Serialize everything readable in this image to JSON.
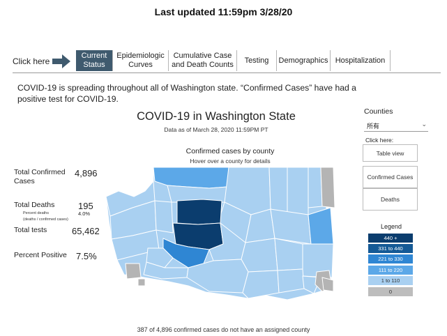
{
  "header": {
    "last_updated": "Last updated 11:59pm 3/28/20"
  },
  "nav": {
    "click_here": "Click here",
    "tabs": [
      {
        "label": "Current Status",
        "active": true
      },
      {
        "label": "Epidemiologic Curves",
        "active": false
      },
      {
        "label": "Cumulative Case and Death Counts",
        "active": false
      },
      {
        "label": "Testing",
        "active": false
      },
      {
        "label": "Demographics",
        "active": false
      },
      {
        "label": "Hospitalization",
        "active": false
      }
    ]
  },
  "intro": "COVID-19 is spreading throughout all of Washington state. “Confirmed Cases” have had a positive test for COVID-19.",
  "dashboard": {
    "title": "COVID-19 in Washington State",
    "data_as_of": "Data as of March 28, 2020 11:59PM PT",
    "map_title": "Confirmed cases by county",
    "map_hint": "Hover over a county for details",
    "footer_note": "387 of 4,896 confirmed cases do not have an assigned county"
  },
  "stats": {
    "confirmed_label": "Total Confirmed Cases",
    "confirmed_value": "4,896",
    "deaths_label": "Total Deaths",
    "deaths_value": "195",
    "percent_deaths_label": "Percent deaths",
    "percent_deaths_sub": "(deaths / confirmed cases)",
    "percent_deaths_value": "4.0%",
    "tests_label": "Total tests",
    "tests_value": "65,462",
    "positive_label": "Percent Positive",
    "positive_value": "7.5%"
  },
  "sidebar": {
    "counties_label": "Counties",
    "counties_selected": "所有",
    "click_here": "Click here:",
    "table_view": "Table view",
    "confirmed_cases": "Confirmed Cases",
    "deaths": "Deaths"
  },
  "legend": {
    "title": "Legend",
    "items": [
      {
        "label": "440 +",
        "color": "#0b3d6e",
        "text_color": "#ffffff"
      },
      {
        "label": "331 to 440",
        "color": "#155a96",
        "text_color": "#ffffff"
      },
      {
        "label": "221 to 330",
        "color": "#2f86d3",
        "text_color": "#ffffff"
      },
      {
        "label": "111 to 220",
        "color": "#5ca8e8",
        "text_color": "#ffffff"
      },
      {
        "label": "1 to 110",
        "color": "#a9d0f1",
        "text_color": "#333333"
      },
      {
        "label": "0",
        "color": "#bdbdbd",
        "text_color": "#333333"
      }
    ]
  },
  "colors": {
    "tab_active_bg": "#3f5a6e",
    "arrow": "#3f5a6e",
    "map_light": "#a9d0f1",
    "map_medium": "#5ca8e8",
    "map_strong": "#2f86d3",
    "map_darkest": "#0b3d6e",
    "map_gray": "#b4b4b4"
  }
}
